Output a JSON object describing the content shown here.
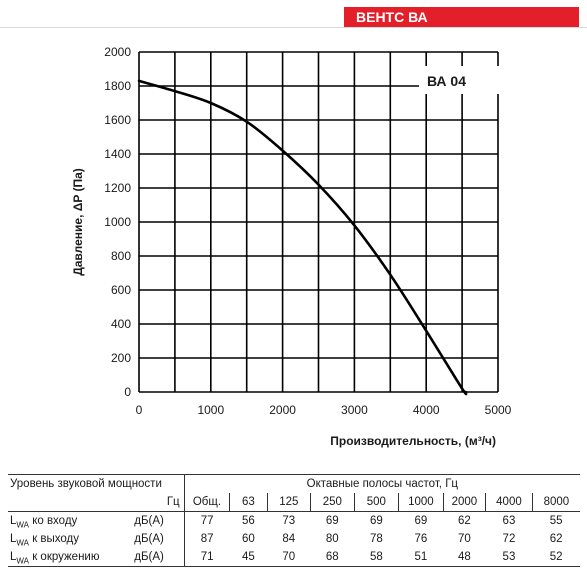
{
  "header": {
    "brand": "ВЕНТС ВА"
  },
  "chart_data": {
    "type": "line",
    "model_label": "ВА 04",
    "xlabel": "Производительность, (м³/ч)",
    "ylabel": "Давление, ΔP (Па)",
    "xlim": [
      0,
      5000
    ],
    "ylim": [
      0,
      2000
    ],
    "x_ticks": [
      0,
      1000,
      2000,
      3000,
      4000,
      5000
    ],
    "y_ticks": [
      0,
      200,
      400,
      600,
      800,
      1000,
      1200,
      1400,
      1600,
      1800,
      2000
    ],
    "x_grid_step": 500,
    "y_grid_step": 200,
    "grid": true,
    "series": [
      {
        "x": [
          0,
          500,
          1000,
          1500,
          2000,
          2500,
          3000,
          3500,
          4000,
          4500,
          4550
        ],
        "y": [
          1830,
          1770,
          1700,
          1590,
          1420,
          1220,
          980,
          690,
          360,
          20,
          0
        ]
      }
    ]
  },
  "table": {
    "title": "Уровень звуковой мощности",
    "bands_title": "Октавные полосы частот, Гц",
    "unit_hz": "Гц",
    "columns": [
      "Общ.",
      "63",
      "125",
      "250",
      "500",
      "1000",
      "2000",
      "4000",
      "8000"
    ],
    "rows": [
      {
        "label_main": "L",
        "label_sub": "WA",
        "label_rest": " ко входу",
        "unit": "дБ(А)",
        "values": [
          "77",
          "56",
          "73",
          "69",
          "69",
          "69",
          "62",
          "63",
          "55"
        ]
      },
      {
        "label_main": "L",
        "label_sub": "WA",
        "label_rest": " к выходу",
        "unit": "дБ(А)",
        "values": [
          "87",
          "60",
          "84",
          "80",
          "78",
          "76",
          "70",
          "72",
          "62"
        ]
      },
      {
        "label_main": "L",
        "label_sub": "WA",
        "label_rest": " к окружению",
        "unit": "дБ(А)",
        "values": [
          "71",
          "45",
          "70",
          "68",
          "58",
          "51",
          "48",
          "53",
          "52"
        ]
      }
    ]
  }
}
